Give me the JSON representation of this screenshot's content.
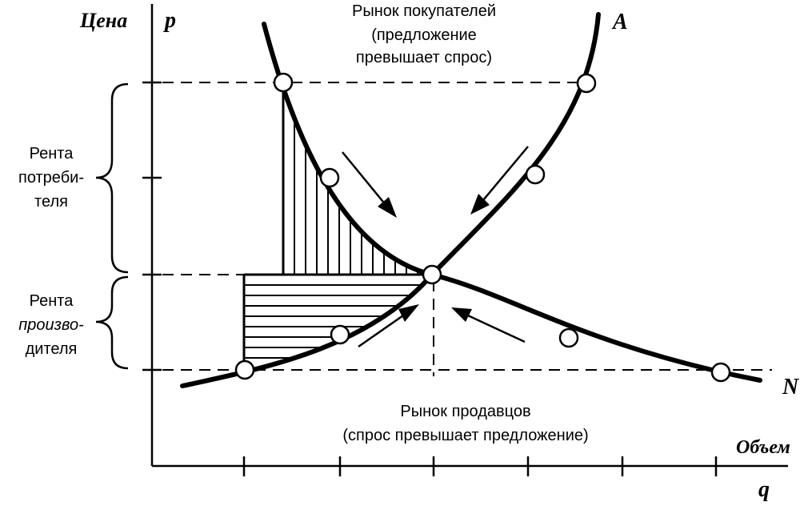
{
  "axis": {
    "y_word": "Цена",
    "y_symbol": "p",
    "x_word": "Объем",
    "x_symbol": "q"
  },
  "curves": {
    "supply_label": "A",
    "demand_label": "N"
  },
  "annotations": {
    "buyers_market": [
      "Рынок покупателей",
      "(предложение",
      "превышает спрос)"
    ],
    "sellers_market": [
      "Рынок продавцов",
      "(спрос превышает предложение)"
    ],
    "consumer_rent": [
      "Рента",
      "потреби-",
      "теля"
    ],
    "producer_rent": [
      "Рента",
      "произво-",
      "дителя"
    ]
  }
}
